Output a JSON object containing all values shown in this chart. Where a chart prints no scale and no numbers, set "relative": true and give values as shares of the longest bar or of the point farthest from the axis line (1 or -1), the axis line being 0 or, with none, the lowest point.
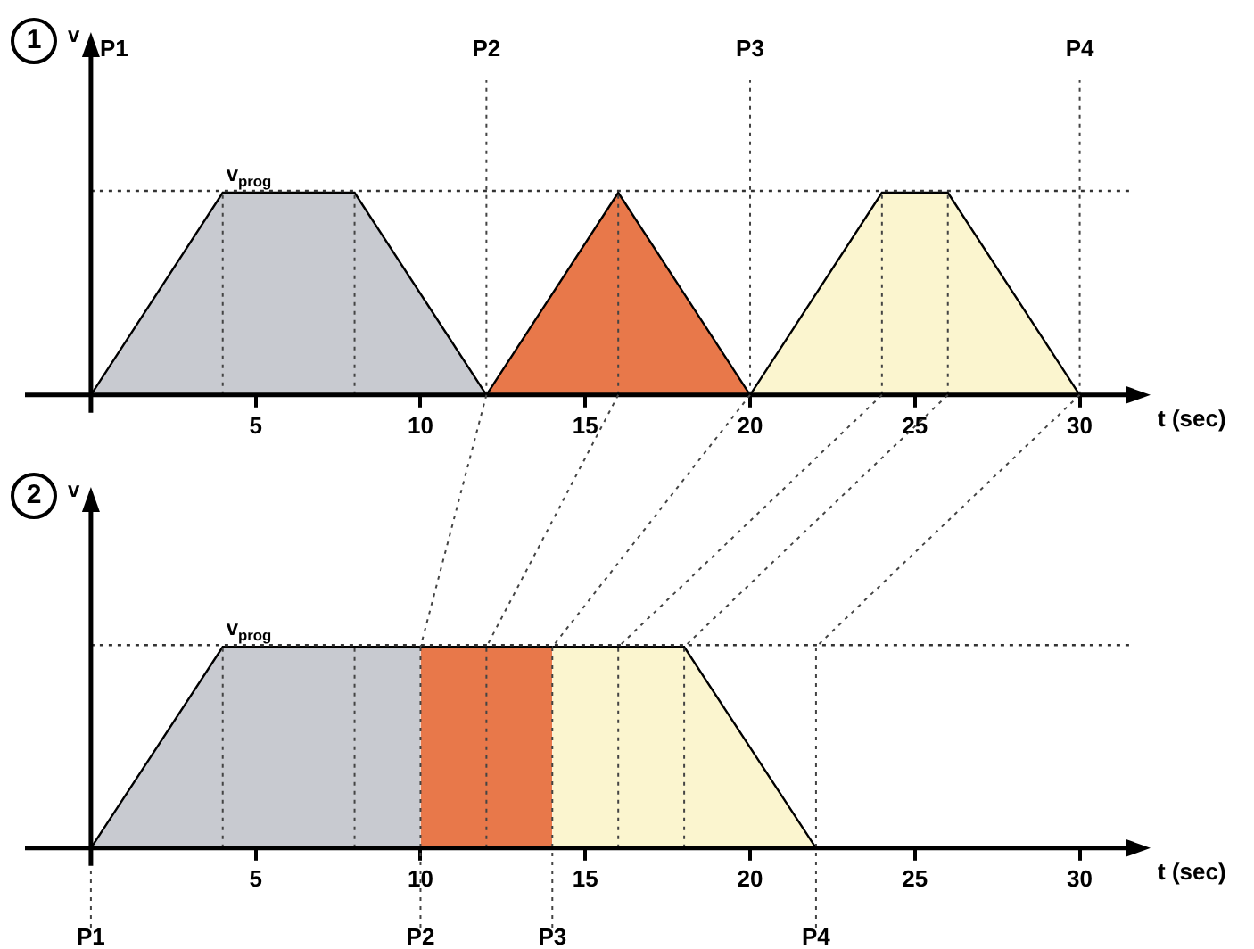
{
  "chart_data": [
    {
      "type": "area",
      "relative": true,
      "xlabel": "t (sec)",
      "ylabel": "v",
      "annotations": [
        "1",
        "P1"
      ],
      "xlim": [
        -2,
        31.5
      ],
      "xticks": [
        5,
        10,
        15,
        20,
        25,
        30
      ],
      "grid": false,
      "legend": false,
      "series": [
        {
          "color": "#c8cad0",
          "x": [
            0,
            4,
            8,
            12
          ],
          "values": [
            0,
            1,
            1,
            0
          ]
        },
        {
          "color": "#e8784a",
          "x": [
            12,
            16,
            20
          ],
          "values": [
            0,
            1,
            0
          ]
        },
        {
          "color": "#fbf5cf",
          "x": [
            20,
            24,
            26,
            30
          ],
          "values": [
            0,
            1,
            1,
            0
          ]
        }
      ],
      "ref_lines": [
        {
          "axis": "y",
          "value": 1,
          "label": "v$_{prog}$",
          "line_style": "dotted"
        },
        {
          "axis": "x",
          "value": 4,
          "line_style": "dotted"
        },
        {
          "axis": "x",
          "value": 8,
          "line_style": "dotted"
        },
        {
          "axis": "x",
          "value": 12,
          "label": "P2",
          "line_style": "dotted"
        },
        {
          "axis": "x",
          "value": 16,
          "line_style": "dotted"
        },
        {
          "axis": "x",
          "value": 20,
          "label": "P3",
          "line_style": "dotted"
        },
        {
          "axis": "x",
          "value": 24,
          "line_style": "dotted"
        },
        {
          "axis": "x",
          "value": 26,
          "line_style": "dotted"
        },
        {
          "axis": "x",
          "value": 30,
          "label": "P4",
          "line_style": "dotted"
        }
      ]
    },
    {
      "type": "area",
      "relative": true,
      "xlabel": "t (sec)",
      "ylabel": "v",
      "annotations": [
        "2"
      ],
      "xlim": [
        -2,
        31.5
      ],
      "xticks": [
        5,
        10,
        15,
        20,
        25,
        30
      ],
      "grid": false,
      "legend": false,
      "series": [
        {
          "color": "#c8cad0",
          "x": [
            0,
            4,
            10
          ],
          "values": [
            0,
            1,
            1
          ]
        },
        {
          "color": "#e8784a",
          "x": [
            10,
            14
          ],
          "values": [
            1,
            1
          ]
        },
        {
          "color": "#fbf5cf",
          "x": [
            14,
            18,
            22
          ],
          "values": [
            1,
            1,
            0
          ]
        }
      ],
      "ref_lines": [
        {
          "axis": "y",
          "value": 1,
          "label": "v$_{prog}$",
          "line_style": "dotted"
        },
        {
          "axis": "x",
          "value": 0,
          "label": "P1",
          "line_style": "dotted"
        },
        {
          "axis": "x",
          "value": 4,
          "line_style": "dotted"
        },
        {
          "axis": "x",
          "value": 8,
          "line_style": "dotted"
        },
        {
          "axis": "x",
          "value": 10,
          "label": "P2",
          "line_style": "dotted"
        },
        {
          "axis": "x",
          "value": 12,
          "line_style": "dotted"
        },
        {
          "axis": "x",
          "value": 14,
          "label": "P3",
          "line_style": "dotted"
        },
        {
          "axis": "x",
          "value": 16,
          "line_style": "dotted"
        },
        {
          "axis": "x",
          "value": 18,
          "line_style": "dotted"
        },
        {
          "axis": "x",
          "value": 22,
          "label": "P4",
          "line_style": "dotted"
        }
      ]
    }
  ]
}
